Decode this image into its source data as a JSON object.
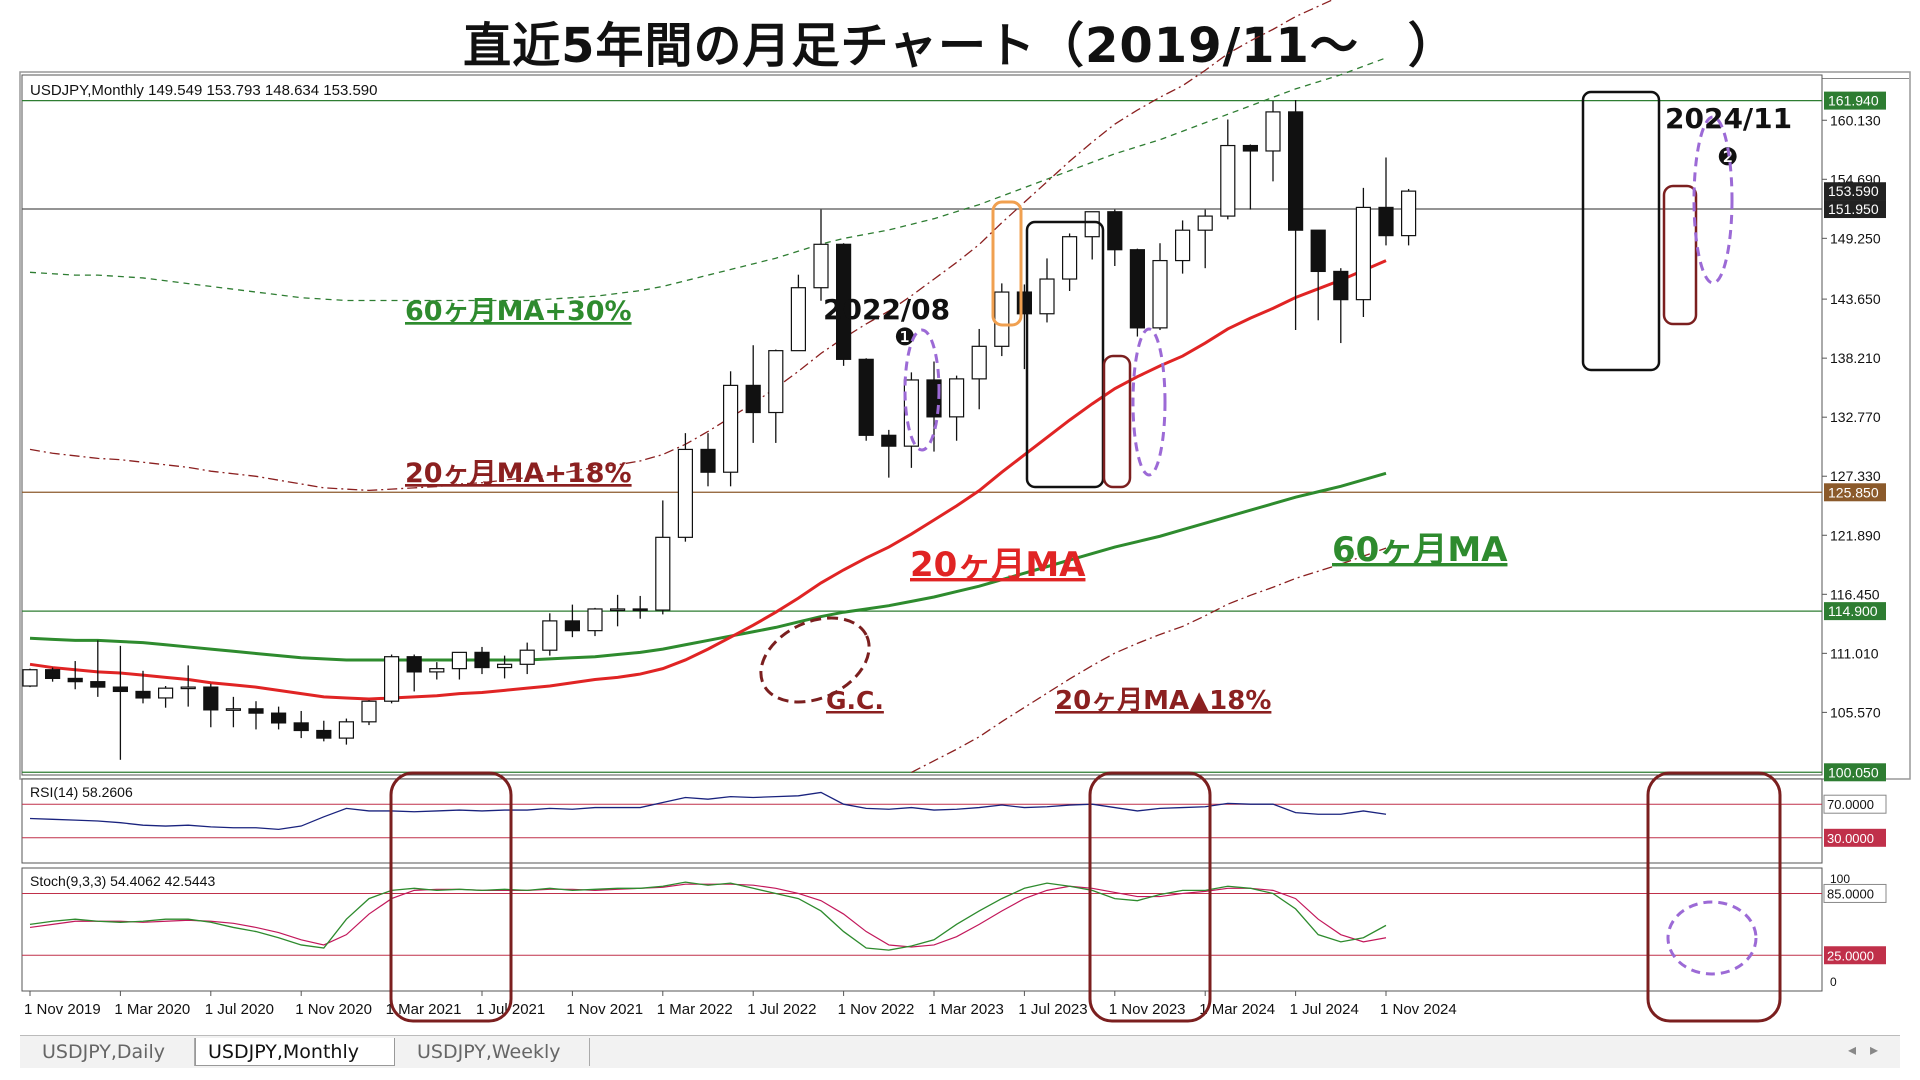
{
  "page": {
    "title": "直近5年間の月足チャート（2019/11～　）"
  },
  "main_chart": {
    "header": "USDJPY,Monthly  149.549 153.793 148.634 153.590",
    "y_ticks": [
      "160.130",
      "154.690",
      "149.250",
      "143.650",
      "138.210",
      "132.770",
      "127.330",
      "121.890",
      "116.450",
      "111.010",
      "105.570"
    ],
    "price_tags": [
      {
        "value": "161.940",
        "color": "#2e7d32"
      },
      {
        "value": "153.590",
        "color": "#222222"
      },
      {
        "value": "151.950",
        "color": "#222222"
      },
      {
        "value": "125.850",
        "color": "#8b5a2b"
      },
      {
        "value": "114.900",
        "color": "#2e7d32"
      },
      {
        "value": "100.050",
        "color": "#2e7d32"
      }
    ]
  },
  "annotations": {
    "ma60_plus30": "60ヶ月MA+30%",
    "ma20_plus18": "20ヶ月MA+18%",
    "ma20_label": "20ヶ月MA",
    "ma60_label": "60ヶ月MA",
    "ma20_minus18": "20ヶ月MA▲18%",
    "gc": "G.C.",
    "date_2022": "2022/08",
    "date_2024": "2024/11",
    "marker1": "❶",
    "marker2": "❷"
  },
  "rsi_panel": {
    "header": "RSI(14) 58.2606",
    "levels": [
      "70.0000",
      "30.0000"
    ]
  },
  "stoch_panel": {
    "header": "Stoch(9,3,3) 54.4062 42.5443",
    "levels": [
      "85.0000",
      "25.0000"
    ],
    "axis_ticks": [
      "100",
      "0"
    ]
  },
  "x_axis": {
    "labels": [
      "1 Nov 2019",
      "1 Mar 2020",
      "1 Jul 2020",
      "1 Nov 2020",
      "1 Mar 2021",
      "1 Jul 2021",
      "1 Nov 2021",
      "1 Mar 2022",
      "1 Jul 2022",
      "1 Nov 2022",
      "1 Mar 2023",
      "1 Jul 2023",
      "1 Nov 2023",
      "1 Mar 2024",
      "1 Jul 2024",
      "1 Nov 2024"
    ]
  },
  "tabs": [
    "USDJPY,Daily",
    "USDJPY,Monthly",
    "USDJPY,Weekly"
  ],
  "colors": {
    "ma20": "#e02424",
    "ma60": "#2e8b2e",
    "ma20_band": "#8b2020",
    "ma60_band": "#2e7d32",
    "rsi_line": "#1a237e",
    "stoch_main": "#2e8b2e",
    "stoch_signal": "#c2185b",
    "highlight_box": "#7b1f1f",
    "dashed_ellipse": "#9c6ad6"
  },
  "chart_data": {
    "type": "candlestick",
    "symbol": "USDJPY",
    "timeframe": "Monthly",
    "months": [
      "2019-11",
      "2019-12",
      "2020-01",
      "2020-02",
      "2020-03",
      "2020-04",
      "2020-05",
      "2020-06",
      "2020-07",
      "2020-08",
      "2020-09",
      "2020-10",
      "2020-11",
      "2020-12",
      "2021-01",
      "2021-02",
      "2021-03",
      "2021-04",
      "2021-05",
      "2021-06",
      "2021-07",
      "2021-08",
      "2021-09",
      "2021-10",
      "2021-11",
      "2021-12",
      "2022-01",
      "2022-02",
      "2022-03",
      "2022-04",
      "2022-05",
      "2022-06",
      "2022-07",
      "2022-08",
      "2022-09",
      "2022-10",
      "2022-11",
      "2022-12",
      "2023-01",
      "2023-02",
      "2023-03",
      "2023-04",
      "2023-05",
      "2023-06",
      "2023-07",
      "2023-08",
      "2023-09",
      "2023-10",
      "2023-11",
      "2023-12",
      "2024-01",
      "2024-02",
      "2024-03",
      "2024-04",
      "2024-05",
      "2024-06",
      "2024-07",
      "2024-08",
      "2024-09",
      "2024-10",
      "2024-11"
    ],
    "ohlc": [
      [
        108.0,
        109.6,
        107.9,
        109.5
      ],
      [
        109.5,
        109.7,
        108.4,
        108.7
      ],
      [
        108.7,
        110.3,
        107.7,
        108.4
      ],
      [
        108.4,
        112.2,
        107.0,
        107.9
      ],
      [
        107.9,
        111.7,
        101.2,
        107.5
      ],
      [
        107.5,
        109.4,
        106.4,
        106.9
      ],
      [
        106.9,
        108.0,
        106.0,
        107.8
      ],
      [
        107.8,
        109.9,
        106.1,
        107.9
      ],
      [
        107.9,
        108.2,
        104.2,
        105.8
      ],
      [
        105.8,
        107.0,
        104.2,
        105.9
      ],
      [
        105.9,
        106.6,
        104.0,
        105.5
      ],
      [
        105.5,
        106.1,
        104.0,
        104.6
      ],
      [
        104.6,
        105.7,
        103.2,
        103.9
      ],
      [
        103.9,
        104.8,
        102.9,
        103.2
      ],
      [
        103.2,
        105.0,
        102.6,
        104.7
      ],
      [
        104.7,
        106.7,
        104.4,
        106.6
      ],
      [
        106.6,
        110.9,
        106.4,
        110.7
      ],
      [
        110.7,
        110.9,
        107.5,
        109.3
      ],
      [
        109.3,
        110.2,
        108.6,
        109.6
      ],
      [
        109.6,
        111.1,
        108.6,
        111.1
      ],
      [
        111.1,
        111.6,
        109.1,
        109.7
      ],
      [
        109.7,
        110.8,
        108.7,
        110.0
      ],
      [
        110.0,
        112.0,
        109.1,
        111.3
      ],
      [
        111.3,
        114.7,
        110.8,
        114.0
      ],
      [
        114.0,
        115.5,
        112.5,
        113.1
      ],
      [
        113.1,
        115.2,
        112.6,
        115.1
      ],
      [
        115.1,
        116.4,
        113.5,
        115.1
      ],
      [
        115.1,
        116.3,
        114.2,
        115.0
      ],
      [
        115.0,
        125.1,
        114.6,
        121.7
      ],
      [
        121.7,
        131.3,
        121.3,
        129.8
      ],
      [
        129.8,
        131.3,
        126.4,
        127.7
      ],
      [
        127.7,
        137.0,
        126.4,
        135.7
      ],
      [
        135.7,
        139.4,
        130.4,
        133.2
      ],
      [
        133.2,
        139.0,
        130.4,
        138.9
      ],
      [
        138.9,
        145.9,
        138.9,
        144.7
      ],
      [
        144.7,
        151.9,
        143.5,
        148.7
      ],
      [
        148.7,
        148.8,
        137.5,
        138.1
      ],
      [
        138.1,
        138.2,
        130.6,
        131.1
      ],
      [
        131.1,
        131.6,
        127.2,
        130.1
      ],
      [
        130.1,
        136.9,
        128.1,
        136.2
      ],
      [
        136.2,
        137.9,
        129.6,
        132.8
      ],
      [
        132.8,
        136.6,
        130.6,
        136.3
      ],
      [
        136.3,
        140.9,
        133.5,
        139.3
      ],
      [
        139.3,
        145.1,
        138.4,
        144.3
      ],
      [
        144.3,
        145.0,
        137.2,
        142.3
      ],
      [
        142.3,
        147.4,
        141.5,
        145.5
      ],
      [
        145.5,
        149.7,
        144.4,
        149.4
      ],
      [
        149.4,
        151.7,
        147.3,
        151.7
      ],
      [
        151.7,
        151.9,
        146.7,
        148.2
      ],
      [
        148.2,
        148.3,
        140.2,
        141.0
      ],
      [
        141.0,
        148.8,
        140.8,
        147.2
      ],
      [
        147.2,
        150.9,
        146.0,
        150.0
      ],
      [
        150.0,
        151.9,
        146.5,
        151.3
      ],
      [
        151.3,
        160.2,
        151.0,
        157.8
      ],
      [
        157.8,
        157.9,
        151.9,
        157.3
      ],
      [
        157.3,
        161.9,
        154.5,
        160.9
      ],
      [
        160.9,
        162.0,
        140.8,
        150.0
      ],
      [
        150.0,
        149.4,
        141.7,
        146.2
      ],
      [
        146.2,
        146.5,
        139.6,
        143.6
      ],
      [
        143.6,
        153.9,
        142.0,
        152.1
      ],
      [
        152.1,
        156.7,
        148.6,
        149.5
      ],
      [
        149.5,
        153.8,
        148.6,
        153.6
      ]
    ],
    "ma20": [
      110.0,
      109.7,
      109.5,
      109.3,
      109.2,
      109.0,
      108.8,
      108.6,
      108.3,
      108.1,
      107.9,
      107.6,
      107.3,
      107.0,
      106.9,
      106.8,
      106.9,
      107.0,
      107.1,
      107.3,
      107.4,
      107.6,
      107.8,
      108.0,
      108.3,
      108.6,
      108.8,
      109.1,
      109.6,
      110.4,
      111.4,
      112.5,
      113.6,
      114.8,
      116.1,
      117.5,
      118.7,
      119.8,
      120.8,
      122.0,
      123.3,
      124.6,
      126.0,
      127.7,
      129.3,
      130.9,
      132.5,
      134.0,
      135.4,
      136.5,
      137.5,
      138.4,
      139.6,
      140.9,
      141.9,
      142.8,
      143.8,
      144.6,
      145.4,
      146.3,
      147.2
    ],
    "ma60": [
      112.4,
      112.3,
      112.2,
      112.2,
      112.1,
      112.0,
      111.8,
      111.6,
      111.4,
      111.2,
      111.0,
      110.8,
      110.6,
      110.5,
      110.4,
      110.4,
      110.4,
      110.4,
      110.4,
      110.4,
      110.4,
      110.4,
      110.4,
      110.5,
      110.6,
      110.7,
      110.9,
      111.1,
      111.4,
      111.8,
      112.2,
      112.6,
      113.0,
      113.4,
      113.9,
      114.4,
      114.8,
      115.1,
      115.4,
      115.8,
      116.2,
      116.7,
      117.2,
      117.8,
      118.4,
      119.0,
      119.6,
      120.2,
      120.8,
      121.3,
      121.8,
      122.4,
      123.0,
      123.6,
      124.2,
      124.8,
      125.4,
      125.9,
      126.4,
      127.0,
      127.6
    ],
    "rsi_latest": 58.2606,
    "stoch_latest": {
      "main": 54.4062,
      "signal": 42.5443
    },
    "ylim": [
      99.8,
      164.3
    ],
    "horizontal_levels": [
      161.94,
      151.95,
      125.85,
      114.9,
      100.05
    ]
  }
}
